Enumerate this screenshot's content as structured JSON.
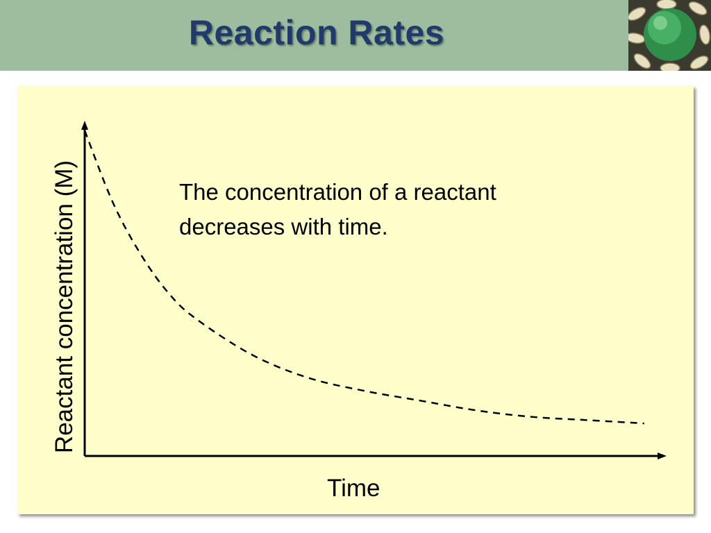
{
  "slide": {
    "title": "Reaction Rates",
    "logo_icon": "green-sphere-logo-icon",
    "colors": {
      "header_bg": "#9dbd9e",
      "title": "#1f3a6b",
      "panel_bg": "#ffffcc"
    }
  },
  "chart_data": {
    "type": "line",
    "title": "",
    "xlabel": "Time",
    "ylabel": "Reactant concentration (M)",
    "annotation": [
      "The concentration of a reactant",
      "decreases with time."
    ],
    "ticks_shown": false,
    "grid": false,
    "line_style": "dashed",
    "series": [
      {
        "x": [
          0,
          0.05,
          0.1,
          0.15,
          0.2,
          0.3,
          0.4,
          0.5,
          0.6,
          0.7,
          0.8,
          0.9,
          1.0
        ],
        "values": [
          1.0,
          0.78,
          0.62,
          0.5,
          0.42,
          0.31,
          0.24,
          0.2,
          0.17,
          0.14,
          0.12,
          0.11,
          0.1
        ]
      }
    ],
    "xlim": [
      0,
      1.04
    ],
    "ylim": [
      0,
      1.03
    ]
  }
}
